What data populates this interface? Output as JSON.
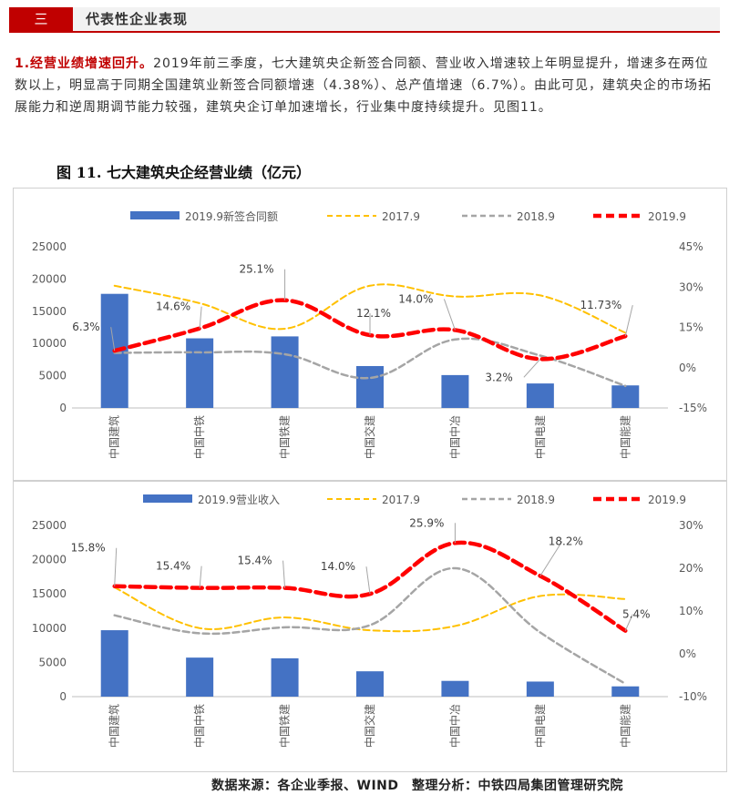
{
  "section": {
    "number": "三",
    "title": "代表性企业表现"
  },
  "paragraph": {
    "lead": "1.经营业绩增速回升。",
    "body": "2019年前三季度，七大建筑央企新签合同额、营业收入增速较上年明显提升，增速多在两位数以上，明显高于同期全国建筑业新签合同额增速（4.38%）、总产值增速（6.7%）。由此可见，建筑央企的市场拓展能力和逆周期调节能力较强，建筑央企订单加速增长，行业集中度持续提升。见图11。"
  },
  "figure_title": "图 11. 七大建筑央企经营业绩（亿元）",
  "source": "数据来源：各企业季报、WIND　整理分析：中铁四局集团管理研究院",
  "colors": {
    "bar": "#4472c4",
    "s2017": "#ffc000",
    "s2018": "#a5a5a5",
    "s2019": "#ff0000",
    "axis": "#595959"
  },
  "chart_data": [
    {
      "type": "bar+line",
      "categories": [
        "中国建筑",
        "中国中铁",
        "中国铁建",
        "中国交建",
        "中国中冶",
        "中国电建",
        "中国能建"
      ],
      "bar_series": {
        "name": "2019.9新签合同额",
        "values": [
          17700,
          10800,
          11100,
          6500,
          5100,
          3800,
          3500
        ]
      },
      "line_series": [
        {
          "name": "2017.9",
          "values": [
            30.5,
            24.0,
            14.5,
            30.5,
            26.5,
            26.9,
            13.0
          ]
        },
        {
          "name": "2018.9",
          "values": [
            5.5,
            5.7,
            5.0,
            -3.8,
            10.5,
            4.5,
            -6.8
          ]
        },
        {
          "name": "2019.9",
          "values": [
            6.3,
            14.6,
            25.1,
            12.1,
            14.0,
            3.2,
            11.73
          ]
        }
      ],
      "data_labels": [
        "6.3%",
        "14.6%",
        "25.1%",
        "12.1%",
        "14.0%",
        "3.2%",
        "11.73%"
      ],
      "y_left": {
        "min": 0,
        "max": 25000,
        "ticks": [
          "0",
          "5000",
          "10000",
          "15000",
          "20000",
          "25000"
        ]
      },
      "y_right": {
        "min": -15,
        "max": 45,
        "ticks": [
          "-15%",
          "0%",
          "15%",
          "30%",
          "45%"
        ]
      },
      "legend_position": "top"
    },
    {
      "type": "bar+line",
      "categories": [
        "中国建筑",
        "中国中铁",
        "中国铁建",
        "中国交建",
        "中国中冶",
        "中国电建",
        "中国能建"
      ],
      "bar_series": {
        "name": "2019.9营业收入",
        "values": [
          9700,
          5700,
          5600,
          3700,
          2300,
          2200,
          1500
        ]
      },
      "line_series": [
        {
          "name": "2017.9",
          "values": [
            15.5,
            6.0,
            8.5,
            5.5,
            6.5,
            13.5,
            12.8
          ]
        },
        {
          "name": "2018.9",
          "values": [
            9.0,
            4.8,
            6.2,
            6.7,
            20.0,
            5.0,
            -7.0
          ]
        },
        {
          "name": "2019.9",
          "values": [
            15.8,
            15.4,
            15.4,
            14.0,
            25.9,
            18.2,
            5.4
          ]
        }
      ],
      "data_labels": [
        "15.8%",
        "15.4%",
        "15.4%",
        "14.0%",
        "25.9%",
        "18.2%",
        "5.4%"
      ],
      "y_left": {
        "min": 0,
        "max": 25000,
        "ticks": [
          "0",
          "5000",
          "10000",
          "15000",
          "20000",
          "25000"
        ]
      },
      "y_right": {
        "min": -10,
        "max": 30,
        "ticks": [
          "-10%",
          "0%",
          "10%",
          "20%",
          "30%"
        ]
      },
      "legend_position": "top"
    }
  ]
}
